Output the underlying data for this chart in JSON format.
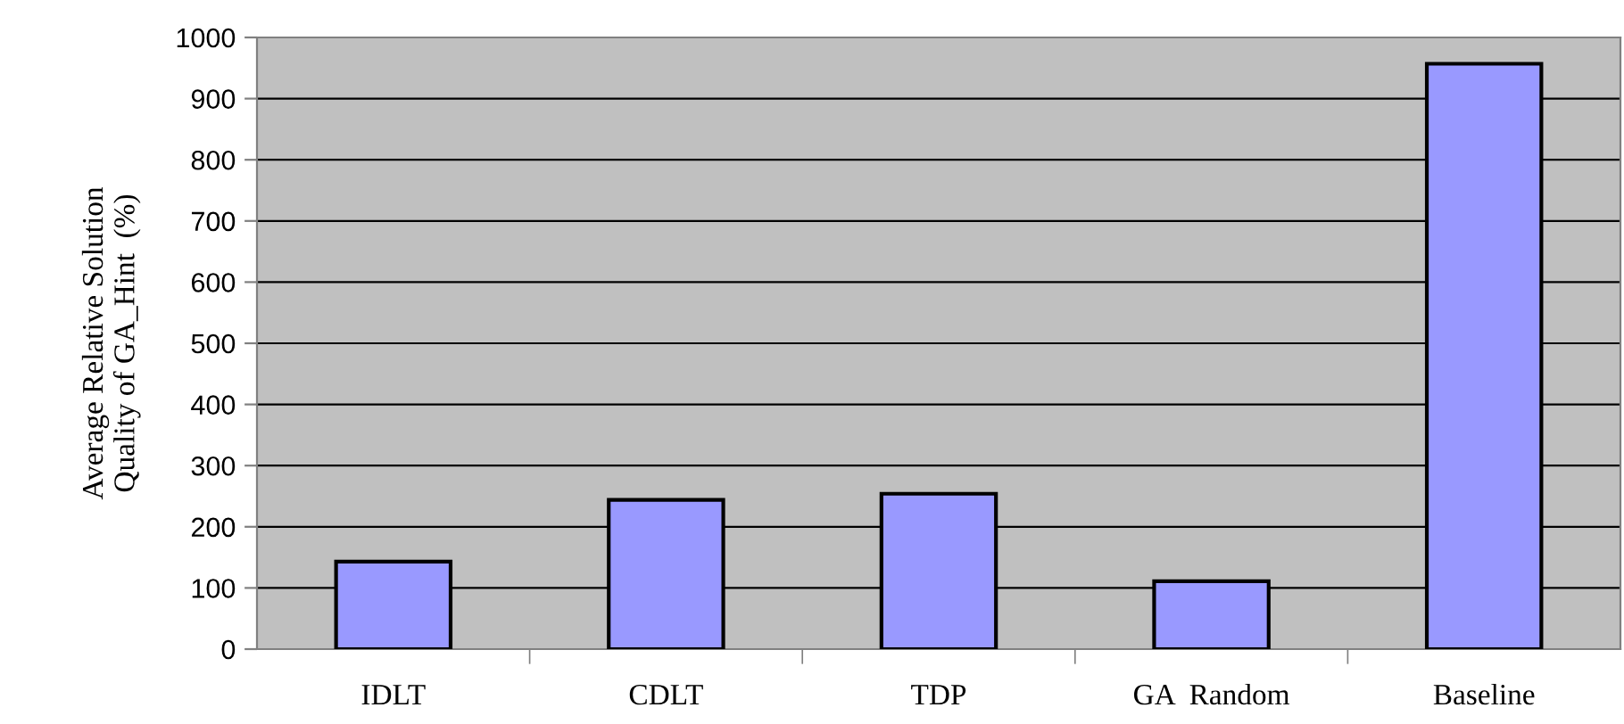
{
  "chart_data": {
    "type": "bar",
    "ylabel": "Average Relative Solution\nQuality of GA_Hint  (%)",
    "categories": [
      "IDLT",
      "CDLT",
      "TDP",
      "GA  Random",
      "Baseline"
    ],
    "values": [
      143,
      244,
      254,
      111,
      957
    ],
    "color": "#9999ff",
    "ylim": [
      0,
      1000
    ],
    "yticks": [
      0,
      100,
      200,
      300,
      400,
      500,
      600,
      700,
      800,
      900,
      1000
    ],
    "grid": "y",
    "legend": false
  }
}
